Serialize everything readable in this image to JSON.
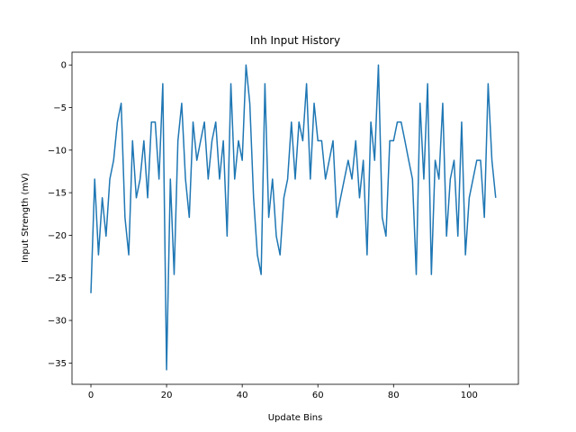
{
  "chart_data": {
    "type": "line",
    "title": "Inh Input History",
    "xlabel": "Update Bins",
    "ylabel": "Input Strength (mV)",
    "xlim": [
      -5,
      113
    ],
    "ylim": [
      -37.5,
      1.5
    ],
    "xticks": [
      0,
      20,
      40,
      60,
      80,
      100
    ],
    "yticks": [
      0,
      -5,
      -10,
      -15,
      -20,
      -25,
      -30,
      -35
    ],
    "grid": false,
    "color": "#1f77b4",
    "series": [
      {
        "x": [
          0,
          1,
          2,
          3,
          4,
          5,
          6,
          7,
          8,
          9,
          10,
          11,
          12,
          13,
          14,
          15,
          16,
          17,
          18,
          19,
          20,
          21,
          22,
          23,
          24,
          25,
          26,
          27,
          28,
          29,
          30,
          31,
          32,
          33,
          34,
          35,
          36,
          37,
          38,
          39,
          40,
          41,
          42,
          43,
          44,
          45,
          46,
          47,
          48,
          49,
          50,
          51,
          52,
          53,
          54,
          55,
          56,
          57,
          58,
          59,
          60,
          61,
          62,
          63,
          64,
          65,
          66,
          67,
          68,
          69,
          70,
          71,
          72,
          73,
          74,
          75,
          76,
          77,
          78,
          79,
          80,
          81,
          82,
          83,
          84,
          85,
          86,
          87,
          88,
          89,
          90,
          91,
          92,
          93,
          94,
          95,
          96,
          97,
          98,
          99,
          100,
          101,
          102,
          103,
          104,
          105,
          106,
          107
        ],
        "values": [
          -26.8,
          -13.4,
          -22.3,
          -15.6,
          -20.1,
          -13.4,
          -11.2,
          -6.7,
          -4.5,
          -17.9,
          -22.3,
          -8.9,
          -15.6,
          -13.4,
          -8.9,
          -15.6,
          -6.7,
          -6.7,
          -13.4,
          -2.2,
          -35.8,
          -13.4,
          -24.6,
          -8.9,
          -4.5,
          -13.4,
          -17.9,
          -6.7,
          -11.2,
          -8.9,
          -6.7,
          -13.4,
          -8.9,
          -6.7,
          -13.4,
          -8.9,
          -20.1,
          -2.2,
          -13.4,
          -8.9,
          -11.2,
          0.0,
          -4.5,
          -15.6,
          -22.3,
          -24.6,
          -2.2,
          -17.9,
          -13.4,
          -20.1,
          -22.3,
          -15.6,
          -13.4,
          -6.7,
          -13.4,
          -6.7,
          -8.9,
          -2.2,
          -13.4,
          -4.5,
          -8.9,
          -8.9,
          -13.4,
          -11.2,
          -8.9,
          -17.9,
          -15.6,
          -13.4,
          -11.2,
          -13.4,
          -8.9,
          -15.6,
          -11.2,
          -22.3,
          -6.7,
          -11.2,
          0.0,
          -17.9,
          -20.1,
          -8.9,
          -8.9,
          -6.7,
          -6.7,
          -8.9,
          -11.2,
          -13.4,
          -24.6,
          -4.5,
          -13.4,
          -2.2,
          -24.6,
          -11.2,
          -13.4,
          -4.5,
          -20.1,
          -13.4,
          -11.2,
          -20.1,
          -6.7,
          -22.3,
          -15.6,
          -13.4,
          -11.2,
          -11.2,
          -17.9,
          -2.2,
          -11.2,
          -15.6
        ]
      }
    ]
  }
}
